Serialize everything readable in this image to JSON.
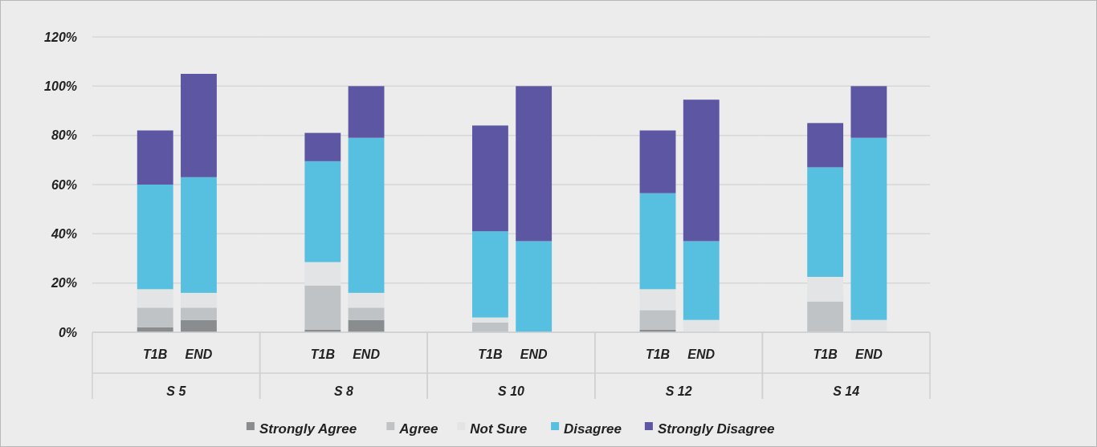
{
  "chart_data": [
    {
      "type": "bar",
      "stacked": true,
      "xlabel": "S 5",
      "categories": [
        "T1B",
        "END"
      ],
      "legend": "bottom",
      "grid": "y",
      "ylim": [
        0,
        120
      ],
      "yticks": [
        {
          "value": 0,
          "label": "0%"
        },
        {
          "value": 20,
          "label": "20%"
        },
        {
          "value": 40,
          "label": "40%"
        },
        {
          "value": 60,
          "label": "60%"
        },
        {
          "value": 80,
          "label": "80%"
        },
        {
          "value": 100,
          "label": "100%"
        },
        {
          "value": 120,
          "label": "120%"
        }
      ],
      "series": [
        {
          "name": "Strongly Agree",
          "color": "#8a8d90",
          "values": [
            2,
            5
          ]
        },
        {
          "name": "Agree",
          "color": "#c0c3c6",
          "values": [
            8,
            5
          ]
        },
        {
          "name": "Not Sure",
          "color": "#e2e4e6",
          "values": [
            7.5,
            6
          ]
        },
        {
          "name": "Disagree",
          "color": "#57c0e0",
          "values": [
            42.5,
            47
          ]
        },
        {
          "name": "Strongly Disagree",
          "color": "#5c56a3",
          "values": [
            22,
            42
          ]
        }
      ]
    },
    {
      "type": "bar",
      "stacked": true,
      "xlabel": "S 8",
      "categories": [
        "T1B",
        "END"
      ],
      "grid": "y",
      "tick_labels": "x",
      "ylim": [
        0,
        120
      ],
      "yticks": [
        0,
        20,
        40,
        60,
        80,
        100,
        120
      ],
      "series": [
        {
          "color": "#8a8d90",
          "values": [
            1,
            5
          ]
        },
        {
          "color": "#c0c3c6",
          "values": [
            18,
            5
          ]
        },
        {
          "color": "#e2e4e6",
          "values": [
            9.5,
            6
          ]
        },
        {
          "color": "#57c0e0",
          "values": [
            41,
            63
          ]
        },
        {
          "color": "#5c56a3",
          "values": [
            11.5,
            21
          ]
        }
      ]
    },
    {
      "type": "bar",
      "stacked": true,
      "xlabel": "S 10",
      "categories": [
        "T1B",
        "END"
      ],
      "grid": "y",
      "tick_labels": "x",
      "ylim": [
        0,
        120
      ],
      "yticks": [
        0,
        20,
        40,
        60,
        80,
        100,
        120
      ],
      "series": [
        {
          "color": "#8a8d90",
          "values": [
            0,
            0
          ]
        },
        {
          "color": "#c0c3c6",
          "values": [
            4,
            0
          ]
        },
        {
          "color": "#e2e4e6",
          "values": [
            2,
            0
          ]
        },
        {
          "color": "#57c0e0",
          "values": [
            35,
            37
          ]
        },
        {
          "color": "#5c56a3",
          "values": [
            43,
            63
          ]
        }
      ]
    },
    {
      "type": "bar",
      "stacked": true,
      "xlabel": "S 12",
      "categories": [
        "T1B",
        "END"
      ],
      "grid": "y",
      "tick_labels": "x",
      "ylim": [
        0,
        120
      ],
      "yticks": [
        0,
        20,
        40,
        60,
        80,
        100,
        120
      ],
      "series": [
        {
          "color": "#8a8d90",
          "values": [
            1,
            0
          ]
        },
        {
          "color": "#c0c3c6",
          "values": [
            8,
            0
          ]
        },
        {
          "color": "#e2e4e6",
          "values": [
            8.5,
            5
          ]
        },
        {
          "color": "#57c0e0",
          "values": [
            39,
            32
          ]
        },
        {
          "color": "#5c56a3",
          "values": [
            25.5,
            57.5
          ]
        }
      ]
    },
    {
      "type": "bar",
      "stacked": true,
      "xlabel": "S 14",
      "categories": [
        "T1B",
        "END"
      ],
      "grid": "y",
      "tick_labels": "x",
      "ylim": [
        0,
        120
      ],
      "yticks": [
        0,
        20,
        40,
        60,
        80,
        100,
        120
      ],
      "series": [
        {
          "color": "#8a8d90",
          "values": [
            0,
            0
          ]
        },
        {
          "color": "#c0c3c6",
          "values": [
            12.5,
            0
          ]
        },
        {
          "color": "#e2e4e6",
          "values": [
            10,
            5
          ]
        },
        {
          "color": "#57c0e0",
          "values": [
            44.5,
            74
          ]
        },
        {
          "color": "#5c56a3",
          "values": [
            18,
            21
          ]
        }
      ]
    }
  ]
}
